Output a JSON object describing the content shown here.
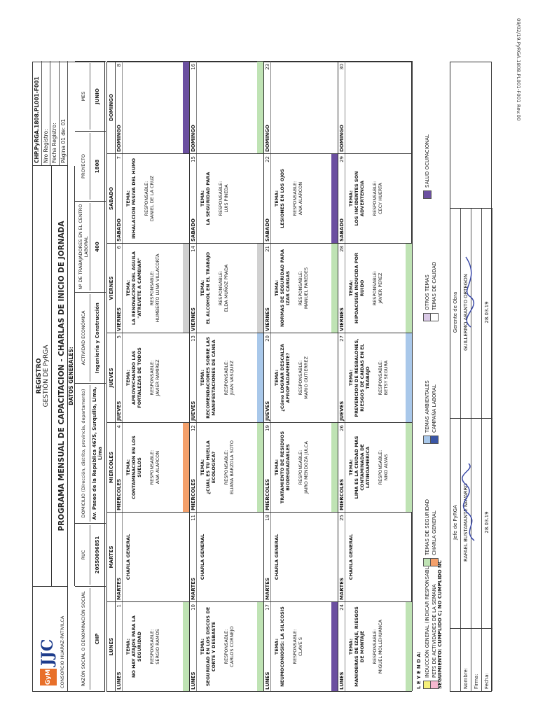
{
  "header": {
    "company_logo_text": "JJC",
    "company_logo_badge": "GyM",
    "consortium": "CONSORCIO HUARAZ-PATIVILCA",
    "register_title": "REGISTRO",
    "register_sub": "GESTIÓN DE PyRGA",
    "doc_title": "PROGRAMA MENSUAL DE CAPACITACION - CHARLAS DE INICIO DE JORNADA",
    "code": "CHP.PyRGA.1808.PL001-F001",
    "nro_registro": "Nro Registro:",
    "fecha_registro": "Fecha Registro:",
    "pagina": "Página 01 de: 01",
    "datos_generales": "DATOS GENERALES:"
  },
  "general": [
    {
      "label": "RAZÓN SOCIAL O DENOMINACIÓN SOCIAL",
      "value": "CHP"
    },
    {
      "label": "RUC",
      "value": "20550096851"
    },
    {
      "label": "DOMICILIO (Dirección, distrito, provincia, departamento)",
      "value": "Av. Paseo de la República 4675, Surquillo, Lima, Lima"
    },
    {
      "label": "ACTIVIDAD ECONÓMICA",
      "value": "Ingeniería y Construcción"
    },
    {
      "label": "Nº DE TRABAJADORES EN EL CENTRO LABORAL",
      "value": "400"
    },
    {
      "label": "PROYECTO",
      "value": "1808"
    },
    {
      "label": "MES",
      "value": "JUNIO"
    }
  ],
  "day_headers": [
    "LUNES",
    "MARTES",
    "MIERCOLES",
    "JUEVES",
    "VIERNES",
    "SABADO",
    "DOMINGO"
  ],
  "weeks": [
    [
      {
        "day": "LUNES",
        "num": "1",
        "title": "TEMA:",
        "topic": "NO HAY ATAJOS PARA LA SEGURIDAD",
        "resp_label": "RESPONSABLE:",
        "resp": "SERGIO RAMOS",
        "band": "#bfe3b4"
      },
      {
        "day": "MARTES",
        "num": "",
        "title": "",
        "topic": "CHARLA GENERAL",
        "resp_label": "",
        "resp": "",
        "band": ""
      },
      {
        "day": "MIERCOLES",
        "num": "4",
        "title": "TEMA:",
        "topic": "CONTAMINACION EN LOS SUELOS",
        "resp_label": "RESPONSABLE:",
        "resp": "ANA ALARCON",
        "band": "#f4a06b"
      },
      {
        "day": "JUEVES",
        "num": "5",
        "title": "TEMA:",
        "topic": "APROVECHANDO LAS FORTALEZAS DE TODOS",
        "resp_label": "RESPONSABLE:",
        "resp": "JAVIER RAMIREZ",
        "band": ""
      },
      {
        "day": "VIERNES",
        "num": "6",
        "title": "TEMA:",
        "topic": "LA RENOVACION DEL AGUILA \"ATREVETE A CAMBIAR\"",
        "resp_label": "RESPONSABLE:",
        "resp": "HUMBERTO LUNA VILLACORTA",
        "band": "#d0d0d0"
      },
      {
        "day": "SABADO",
        "num": "7",
        "title": "TEMA:",
        "topic": "INHALACION PASIVA DEL HUMO",
        "resp_label": "RESPONSABLE:",
        "resp": "DANIEL DE LA CRUZ",
        "band": ""
      },
      {
        "day": "DOMINGO",
        "num": "8",
        "title": "",
        "topic": "",
        "resp_label": "",
        "resp": "",
        "band": "#6b4fa0"
      }
    ],
    [
      {
        "day": "LUNES",
        "num": "10",
        "title": "TEMA:",
        "topic": "SEGURIDAD EN LOS DISCOS DE CORTE Y DESBASTE",
        "resp_label": "RESPONSABLE:",
        "resp": "CARLOS CORNEJO",
        "band": "#bfe3b4"
      },
      {
        "day": "MARTES",
        "num": "11",
        "title": "",
        "topic": "CHARLA GENERAL",
        "resp_label": "",
        "resp": "",
        "band": ""
      },
      {
        "day": "MIERCOLES",
        "num": "12",
        "title": "TEMA:",
        "topic": "¿CUAL ES TU HUELLA ECOLOGICA?",
        "resp_label": "RESPONSABLE:",
        "resp": "ELIANA BARZOLA SOTO",
        "band": "#bfe3b4"
      },
      {
        "day": "JUEVES",
        "num": "13",
        "title": "TEMA:",
        "topic": "RECOMENDACIONES SOBRE LAS MANIFESTACIONES DE CANSA",
        "resp_label": "RESPONSABLE:",
        "resp": "JUAN VASQUEZ",
        "band": "#a9c8ea"
      },
      {
        "day": "VIERNES",
        "num": "14",
        "title": "TEMA:",
        "topic": "EL ALCOHOL EN EL TRABAJO",
        "resp_label": "RESPONSABLE:",
        "resp": "ELDA MUÑOZ PRADA",
        "band": "#d0d0d0"
      },
      {
        "day": "SABADO",
        "num": "15",
        "title": "TEMA:",
        "topic": "LA SEGURIDAD PARA",
        "resp_label": "RESPONSABLE:",
        "resp": "LUIS PINEDA",
        "band": ""
      },
      {
        "day": "DOMINGO",
        "num": "16",
        "title": "",
        "topic": "",
        "resp_label": "",
        "resp": "",
        "band": "#bfe3b4"
      }
    ],
    [
      {
        "day": "LUNES",
        "num": "17",
        "title": "TEMA:",
        "topic": "NEUMOCONIOSIS: LA SILICOSIS",
        "resp_label": "RESPONSABLE:",
        "resp": "CLAVE S",
        "band": "#6b4fa0"
      },
      {
        "day": "MARTES",
        "num": "18",
        "title": "",
        "topic": "CHARLA GENERAL",
        "resp_label": "",
        "resp": "",
        "band": ""
      },
      {
        "day": "MIERCOLES",
        "num": "19",
        "title": "TEMA:",
        "topic": "TRATAMIENTO DE RESIDUOS BIODEGRADABLES",
        "resp_label": "RESPONSABLE:",
        "resp": "JAIRO MENDOZA JULCA",
        "band": "#bfe3b4"
      },
      {
        "day": "JUEVES",
        "num": "20",
        "title": "TEMA:",
        "topic": "¿Cómo LOGRAR DESCALZA AFROPIADAMENTE?",
        "resp_label": "RESPONSABLE:",
        "resp": "MARIO GUTIERREZ",
        "band": ""
      },
      {
        "day": "VIERNES",
        "num": "21",
        "title": "TEMA:",
        "topic": "NORMAS DE SEGURIDAD PARA IZAR CARGAS",
        "resp_label": "RESPONSABLE:",
        "resp": "MANUEL PAREDES",
        "band": "#bfe3b4"
      },
      {
        "day": "SABADO",
        "num": "22",
        "title": "TEMA:",
        "topic": "LESIONES EN LOS OJOS",
        "resp_label": "RESPONSABLE:",
        "resp": "ANA ALARCON",
        "band": "#6b4fa0"
      },
      {
        "day": "DOMINGO",
        "num": "23",
        "title": "",
        "topic": "",
        "resp_label": "",
        "resp": "",
        "band": ""
      }
    ],
    [
      {
        "day": "LUNES",
        "num": "24",
        "title": "TEMA:",
        "topic": "MANIOBRAS DE IZAJE, RIESGOS DE MONTAJE",
        "resp_label": "RESPONSABLE:",
        "resp": "MIGUEL MOLLEHUANCA",
        "band": "#bfe3b4"
      },
      {
        "day": "MARTES",
        "num": "25",
        "title": "",
        "topic": "CHARLA GENERAL",
        "resp_label": "",
        "resp": "",
        "band": ""
      },
      {
        "day": "MIERCOLES",
        "num": "26",
        "title": "TEMA:",
        "topic": "LIMA ES LA CIUDAD MAS CONTAMINADA DE LATINOAMERICA",
        "resp_label": "RESPONSABLE:",
        "resp": "NIKO ALVAS",
        "band": "#bfe3b4"
      },
      {
        "day": "JUEVES",
        "num": "27",
        "title": "TEMA:",
        "topic": "PREVENCION DE RESBALONES, RIESGOS DE CAIDAS EN EL TRABAJO",
        "resp_label": "RESPONSABLE:",
        "resp": "BETSY SEGURA",
        "band": "#a9c8ea"
      },
      {
        "day": "VIERNES",
        "num": "28",
        "title": "TEMA:",
        "topic": "HIPOACUSIA INDUCIDA POR RUIDO",
        "resp_label": "RESPONSABLE:",
        "resp": "JAVIER PEREZ",
        "band": "#bfe3b4"
      },
      {
        "day": "SABADO",
        "num": "29",
        "title": "TEMA:",
        "topic": "LOS INCIDENTES SON ADVERTENCIA",
        "resp_label": "RESPONSABLE:",
        "resp": "CECY HUERTA",
        "band": ""
      },
      {
        "day": "DOMINGO",
        "num": "30",
        "title": "",
        "topic": "",
        "resp_label": "",
        "resp": "",
        "band": ""
      }
    ]
  ],
  "legend": {
    "title": "L E Y E N D A:",
    "items": [
      {
        "label": "INDUCCIÓN GENERAL (INDICAR RESPONSABLE)",
        "color": "#f6f07a"
      },
      {
        "label": "TEMAS DE SEGURIDAD",
        "color": "#bfe3b4"
      },
      {
        "label": "TEMAS AMBIENTALES",
        "color": "#a9c8ea"
      },
      {
        "label": "OTROS TEMAS",
        "color": "#d9c9e6"
      },
      {
        "label": "SALUD OCUPACIONAL",
        "color": "#6b4fa0"
      },
      {
        "label": "PETS DE ACTIVIDADES DE LA SEMANA",
        "color": "#f5b8cf"
      },
      {
        "label": "CHARLA GENERAL",
        "color": "#f4a06b"
      },
      {
        "label": "CAMPAÑA LABORAL",
        "color": "#3a56a6"
      },
      {
        "label": "TEMAS DE CALIDAD",
        "color": "#ffffff"
      }
    ],
    "followup": "SEGUIMIENTO:    CUMPLIDO  C;  NO CUMPLIDO   NC"
  },
  "signatures": {
    "nombre_label": "Nombre:",
    "firma_label": "Firma:",
    "fecha_label": "Fecha:",
    "left_role": "Jefe de PyRGA",
    "left_name": "RAFAEL BUSTAMANTE NAVARRO",
    "left_date": "28.03.19",
    "right_role": "Gerente de Obra",
    "right_name": "GUILLERMO ABANTO ORTEGON",
    "right_date": "28.03.19"
  },
  "footer_code": "09/02/19.PyRGA.1808.PL001-F001 Rev.00"
}
